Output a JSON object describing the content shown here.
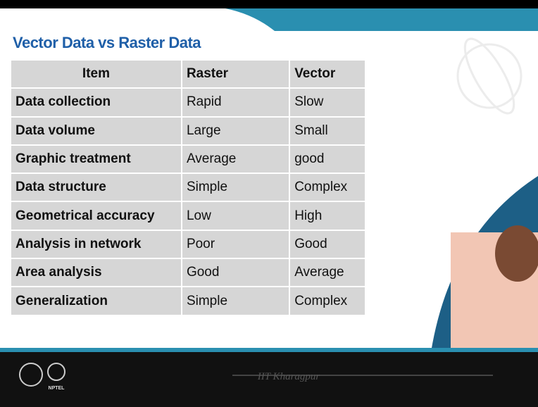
{
  "header": {
    "title": "Vector Data vs Raster Data"
  },
  "table": {
    "columns": [
      "Item",
      "Raster",
      "Vector"
    ],
    "rows": [
      [
        "Data collection",
        "Rapid",
        "Slow"
      ],
      [
        "Data volume",
        "Large",
        "Small"
      ],
      [
        "Graphic treatment",
        "Average",
        "good"
      ],
      [
        "Data structure",
        "Simple",
        "Complex"
      ],
      [
        "Geometrical accuracy",
        "Low",
        "High"
      ],
      [
        "Analysis in network",
        "Poor",
        "Good"
      ],
      [
        "Area analysis",
        "Good",
        "Average"
      ],
      [
        "Generalization",
        "Simple",
        "Complex"
      ]
    ]
  },
  "footer": {
    "institute": "IIT Kharagpur",
    "logo_text": "NPTEL"
  }
}
